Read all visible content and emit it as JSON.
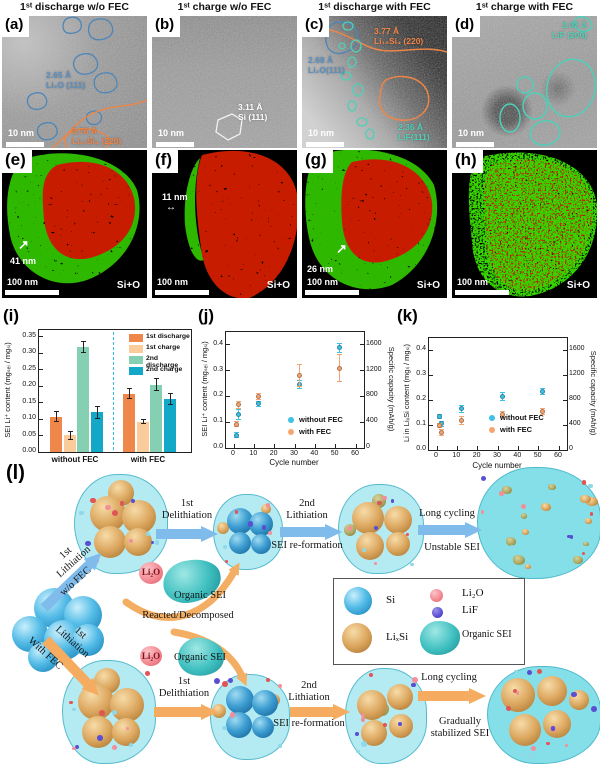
{
  "figure": {
    "panel_titles": [
      "1ˢᵗ discharge w/o FEC",
      "1ˢᵗ charge w/o FEC",
      "1ˢᵗ discharge with FEC",
      "1ˢᵗ charge with FEC"
    ],
    "chart_letters": [
      "(i)",
      "(j)",
      "(k)"
    ],
    "micrographs": [
      {
        "letter": "(a)",
        "scalebar": "10 nm",
        "annotations": [
          {
            "text": "2.65 Å\nLi₂O (111)",
            "color": "#5b8fc0"
          },
          {
            "text": "3.76 Å\nLi₁₅Si₄ (220)",
            "color": "#f08447"
          }
        ]
      },
      {
        "letter": "(b)",
        "scalebar": "10 nm",
        "annotations": [
          {
            "text": "3.11 Å\nSi (111)",
            "color": "#ffffff"
          }
        ]
      },
      {
        "letter": "(c)",
        "scalebar": "10 nm",
        "annotations": [
          {
            "text": "3.77 Å\nLi₁₅Si₄ (220)",
            "color": "#f08447"
          },
          {
            "text": "2.68 Å\nLi₂O(111)",
            "color": "#5b8fc0"
          },
          {
            "text": "2.36 Å\nLiF(111)",
            "color": "#4ed0b8"
          }
        ]
      },
      {
        "letter": "(d)",
        "scalebar": "10 nm",
        "annotations": [
          {
            "text": "2.02 Å\nLiF (200)",
            "color": "#4ed0b8"
          }
        ]
      }
    ],
    "eds": [
      {
        "letter": "(e)",
        "scalebar": "100 nm",
        "tag": "Si+O",
        "measure": "41 nm"
      },
      {
        "letter": "(f)",
        "scalebar": "100 nm",
        "tag": "Si+O",
        "measure": "11 nm"
      },
      {
        "letter": "(g)",
        "scalebar": "100 nm",
        "tag": "Si+O",
        "measure": "26 nm"
      },
      {
        "letter": "(h)",
        "scalebar": "100 nm",
        "tag": "Si+O"
      }
    ]
  },
  "chart_data": [
    {
      "panel": "i",
      "type": "bar",
      "categories": [
        "without FEC",
        "with FEC"
      ],
      "series": [
        {
          "name": "1st discharge",
          "color": "#F0874A",
          "values": [
            0.107,
            0.177
          ],
          "errors": [
            0.016,
            0.016
          ]
        },
        {
          "name": "1st charge",
          "color": "#FACC9C",
          "values": [
            0.051,
            0.092
          ],
          "errors": [
            0.014,
            0.008
          ]
        },
        {
          "name": "2nd discharge",
          "color": "#85D0B2",
          "values": [
            0.318,
            0.204
          ],
          "errors": [
            0.018,
            0.02
          ]
        },
        {
          "name": "2nd charge",
          "color": "#14A8C8",
          "values": [
            0.12,
            0.16
          ],
          "errors": [
            0.02,
            0.018
          ]
        }
      ],
      "ylabel": "SEI Li⁺ content (mgₛₑᵢ / mgₛᵢ)",
      "ylim": [
        0,
        0.37
      ],
      "yticks": [
        0,
        0.05,
        0.1,
        0.15,
        0.2,
        0.25,
        0.3,
        0.35
      ],
      "divider_color": "#2FC0E0",
      "legend_position": "top-right"
    },
    {
      "panel": "j",
      "type": "scatter",
      "xlabel": "Cycle number",
      "xlim": [
        0,
        60
      ],
      "xticks": [
        0,
        10,
        20,
        30,
        40,
        50,
        60
      ],
      "ylabel": "SEI Li⁺ content (mgₛₑᵢ / mgₛᵢ)",
      "ylim": [
        0,
        0.45
      ],
      "yticks": [
        0.0,
        0.1,
        0.2,
        0.3,
        0.4
      ],
      "y2label": "Specific capacity (mAh/g)",
      "y2lim": [
        0,
        1800
      ],
      "y2ticks": [
        0,
        400,
        800,
        1200,
        1600
      ],
      "series": [
        {
          "name": "without FEC",
          "color": "#3EC1E4",
          "points": [
            [
              1,
              0.05,
              0.012
            ],
            [
              2,
              0.13,
              0.022
            ],
            [
              12,
              0.172,
              0.012
            ],
            [
              32,
              0.245,
              0.018
            ],
            [
              52,
              0.388,
              0.018
            ]
          ]
        },
        {
          "name": "with FEC",
          "color": "#F5A571",
          "points": [
            [
              1,
              0.093,
              0.012
            ],
            [
              2,
              0.168,
              0.015
            ],
            [
              12,
              0.2,
              0.012
            ],
            [
              32,
              0.28,
              0.045
            ],
            [
              52,
              0.31,
              0.055
            ]
          ]
        }
      ],
      "legend_position": "bottom-right"
    },
    {
      "panel": "k",
      "type": "scatter",
      "xlabel": "Cycle number",
      "xlim": [
        0,
        60
      ],
      "xticks": [
        0,
        10,
        20,
        30,
        40,
        50,
        60
      ],
      "ylabel": "Li in LiₓSi content (mgₗᵢ / mgₛᵢ)",
      "ylim": [
        0,
        0.45
      ],
      "yticks": [
        0.0,
        0.1,
        0.2,
        0.3,
        0.4
      ],
      "y2label": "Specific capacity (mAh/g)",
      "y2lim": [
        0,
        1800
      ],
      "y2ticks": [
        0,
        400,
        800,
        1200,
        1600
      ],
      "series": [
        {
          "name": "without FEC",
          "color": "#3EC1E4",
          "points": [
            [
              1,
              0.135,
              0.01
            ],
            [
              2,
              0.105,
              0.012
            ],
            [
              12,
              0.165,
              0.015
            ],
            [
              32,
              0.215,
              0.02
            ],
            [
              52,
              0.235,
              0.015
            ]
          ]
        },
        {
          "name": "with FEC",
          "color": "#F5A571",
          "points": [
            [
              1,
              0.1,
              0.01
            ],
            [
              2,
              0.07,
              0.013
            ],
            [
              12,
              0.118,
              0.018
            ],
            [
              32,
              0.143,
              0.013
            ],
            [
              52,
              0.155,
              0.015
            ]
          ]
        }
      ],
      "legend_position": "bottom-right"
    }
  ],
  "schematic": {
    "panel_letter": "(l)",
    "lith1_top": "1st\nLithiation",
    "wofec": "w/o FEC",
    "delith1_top": "1st\nDelithiation",
    "lith2_top": "2nd\nLithiation",
    "seiref_top": "SEI re-formation",
    "longcyc_top": "Long cycling",
    "unstable": "Unstable SEI",
    "li2o_1": "Li₂O",
    "orgsei_1": "Organic SEI",
    "reacted": "Reacted/Decomposed",
    "li2o_2": "Li₂O",
    "orgsei_2": "Organic SEI",
    "lith1_bot": "1st\nLithiation",
    "withfec": "With FEC",
    "delith1_bot": "1st\nDelithiation",
    "lith2_bot": "2nd\nLithiation",
    "seiref_bot": "SEI re-formation",
    "longcyc_bot": "Long cycling",
    "gradstab": "Gradually\nstabilized SEI",
    "legend": {
      "si": "Si",
      "li2o": "Li₂O",
      "lif": "LiF",
      "lixsi": "LiₓSi",
      "orgsei": "Organic SEI"
    }
  }
}
